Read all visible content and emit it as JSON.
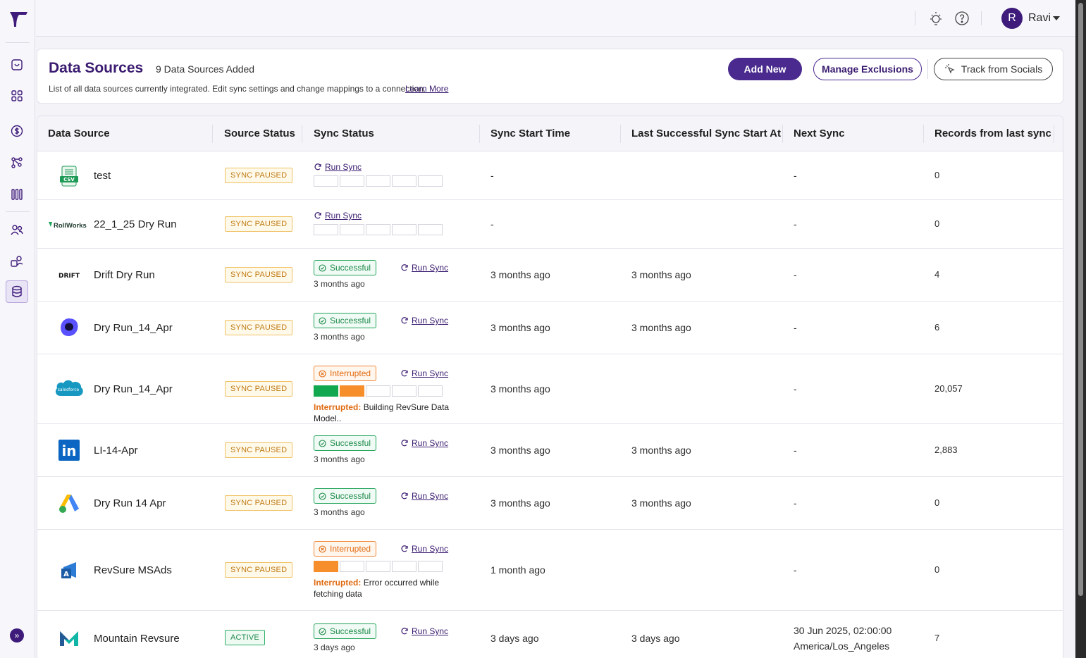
{
  "topbar": {
    "username": "Ravi",
    "avatar_initial": "R"
  },
  "header": {
    "title": "Data Sources",
    "count": "9 Data Sources Added",
    "description": "List of all data sources currently integrated. Edit sync settings and change mappings to a connection.",
    "learn_more": "Learn More",
    "add_new": "Add New",
    "manage_exclusions": "Manage Exclusions",
    "track_socials": "Track from Socials"
  },
  "table": {
    "columns": [
      "Data Source",
      "Source Status",
      "Sync Status",
      "Sync Start Time",
      "Last Successful Sync Start At",
      "Next Sync",
      "Records from last sync"
    ],
    "run_sync_label": "Run Sync",
    "interrupted_prefix": "Interrupted:",
    "rows": [
      {
        "name": "test",
        "logo": "csv-icon",
        "source_status": "SYNC PAUSED",
        "sync_start": "-",
        "last_success": "",
        "next_sync": "-",
        "records": "0"
      },
      {
        "name": "22_1_25 Dry Run",
        "logo": "rollworks-logo",
        "logo_text": "RollWorks",
        "source_status": "SYNC PAUSED",
        "sync_start": "-",
        "last_success": "",
        "next_sync": "-",
        "records": "0"
      },
      {
        "name": "Drift Dry Run",
        "logo": "drift-logo",
        "logo_text": "DRIFT",
        "source_status": "SYNC PAUSED",
        "pill": "Successful",
        "ago": "3 months ago",
        "sync_start": "3 months ago",
        "last_success": "3 months ago",
        "next_sync": "-",
        "records": "4"
      },
      {
        "name": "Dry Run_14_Apr",
        "logo": "outreach-logo",
        "source_status": "SYNC PAUSED",
        "pill": "Successful",
        "ago": "3 months ago",
        "sync_start": "3 months ago",
        "last_success": "3 months ago",
        "next_sync": "-",
        "records": "6"
      },
      {
        "name": "Dry Run_14_Apr",
        "logo": "salesforce-logo",
        "logo_text": "salesforce",
        "source_status": "SYNC PAUSED",
        "pill": "Interrupted",
        "interrupt_detail": "Building RevSure Data Model..",
        "sync_start": "3 months ago",
        "last_success": "",
        "next_sync": "-",
        "records": "20,057"
      },
      {
        "name": "LI-14-Apr",
        "logo": "linkedin-logo",
        "logo_text": "in",
        "source_status": "SYNC PAUSED",
        "pill": "Successful",
        "ago": "3 months ago",
        "sync_start": "3 months ago",
        "last_success": "3 months ago",
        "next_sync": "-",
        "records": "2,883"
      },
      {
        "name": "Dry Run 14 Apr",
        "logo": "google-ads-logo",
        "source_status": "SYNC PAUSED",
        "pill": "Successful",
        "ago": "3 months ago",
        "sync_start": "3 months ago",
        "last_success": "3 months ago",
        "next_sync": "-",
        "records": "0"
      },
      {
        "name": "RevSure MSAds",
        "logo": "msads-logo",
        "source_status": "SYNC PAUSED",
        "pill": "Interrupted",
        "interrupt_detail": "Error occurred while fetching data",
        "sync_start": "1 month ago",
        "last_success": "",
        "next_sync": "-",
        "records": "0"
      },
      {
        "name": "Mountain Revsure",
        "logo": "mountain-logo",
        "source_status": "ACTIVE",
        "pill": "Successful",
        "ago": "3 days ago",
        "sync_start": "3 days ago",
        "last_success": "3 days ago",
        "next_sync": "30 Jun 2025, 02:00:00",
        "next_sync_tz": "America/Los_Angeles",
        "records": "7"
      }
    ]
  },
  "colors": {
    "brand": "#3e1b7a",
    "success": "#12a84f",
    "interrupt": "#f58e2b",
    "paused": "#c07a12"
  }
}
